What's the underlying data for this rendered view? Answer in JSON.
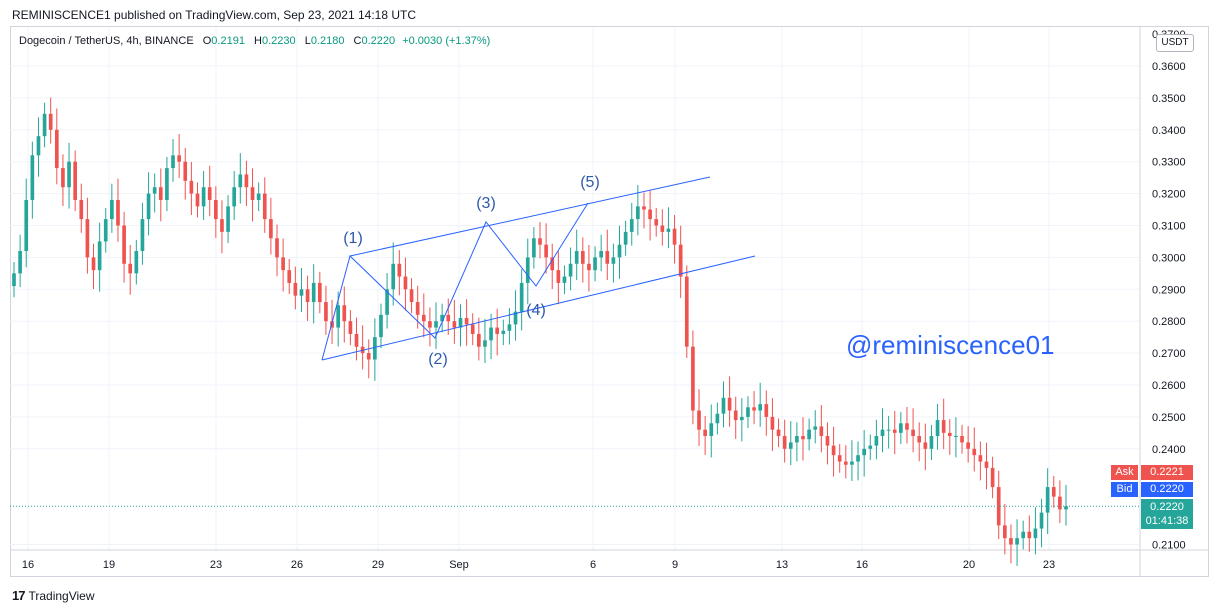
{
  "header": {
    "published": "REMINISCENCE1 published on TradingView.com, Sep 23, 2021 14:18 UTC"
  },
  "legend": {
    "symbol": "Dogecoin / TetherUS, 4h, BINANCE",
    "o_label": "O",
    "o_value": "0.2191",
    "h_label": "H",
    "h_value": "0.2230",
    "l_label": "L",
    "l_value": "0.2180",
    "c_label": "C",
    "c_value": "0.2220",
    "change": "+0.0030 (+1.37%)"
  },
  "price_axis": {
    "currency": "USDT",
    "ticks": [
      "0.3600",
      "0.3500",
      "0.3400",
      "0.3300",
      "0.3200",
      "0.3100",
      "0.3000",
      "0.2900",
      "0.2800",
      "0.2700",
      "0.2600",
      "0.2500",
      "0.2400",
      "0.2100"
    ],
    "top_partial": "0.3700"
  },
  "time_axis": {
    "ticks": [
      "16",
      "19",
      "23",
      "26",
      "29",
      "Sep",
      "6",
      "9",
      "13",
      "16",
      "20",
      "23"
    ]
  },
  "price_tags": {
    "ask_label": "Ask",
    "ask_value": "0.2221",
    "bid_label": "Bid",
    "bid_value": "0.2220",
    "last_value": "0.2220",
    "countdown": "01:41:38"
  },
  "annotations": {
    "wave_labels": [
      "(1)",
      "(2)",
      "(3)",
      "(4)",
      "(5)"
    ],
    "watermark": "@reminiscence01"
  },
  "colors": {
    "up": "#26a69a",
    "down": "#ef5350",
    "drawing": "#2962ff",
    "ask": "#ef5350",
    "bid": "#2962ff",
    "last": "#26a69a"
  },
  "footer": {
    "brand": "TradingView"
  },
  "chart_data": {
    "type": "candlestick",
    "title": "Dogecoin / TetherUS, 4h, BINANCE",
    "ylabel": "USDT",
    "ylim": [
      0.205,
      0.37
    ],
    "x_ticks": [
      "16",
      "19",
      "23",
      "26",
      "29",
      "Sep",
      "6",
      "9",
      "13",
      "16",
      "20",
      "23"
    ],
    "series": [
      {
        "close": [
          0.295,
          0.302,
          0.318,
          0.332,
          0.338,
          0.345,
          0.34,
          0.328,
          0.322,
          0.33,
          0.318,
          0.312,
          0.3,
          0.296,
          0.305,
          0.312,
          0.318,
          0.31,
          0.298,
          0.295,
          0.302,
          0.312,
          0.32,
          0.322,
          0.318,
          0.328,
          0.332,
          0.33,
          0.324,
          0.32,
          0.316,
          0.322,
          0.318,
          0.312,
          0.308,
          0.316,
          0.322,
          0.326,
          0.322,
          0.318,
          0.32,
          0.312,
          0.306,
          0.3,
          0.296,
          0.292,
          0.288,
          0.29,
          0.286,
          0.292,
          0.286,
          0.28,
          0.278,
          0.285,
          0.28,
          0.276,
          0.272,
          0.27,
          0.268,
          0.275,
          0.282,
          0.29,
          0.298,
          0.294,
          0.29,
          0.286,
          0.282,
          0.28,
          0.278,
          0.28,
          0.282,
          0.28,
          0.278,
          0.281,
          0.279,
          0.276,
          0.272,
          0.274,
          0.278,
          0.276,
          0.277,
          0.279,
          0.283,
          0.292,
          0.3,
          0.306,
          0.304,
          0.3,
          0.296,
          0.292,
          0.294,
          0.298,
          0.302,
          0.298,
          0.296,
          0.3,
          0.302,
          0.298,
          0.3,
          0.304,
          0.308,
          0.312,
          0.316,
          0.315,
          0.312,
          0.31,
          0.308,
          0.309,
          0.304,
          0.294,
          0.272,
          0.252,
          0.246,
          0.244,
          0.248,
          0.251,
          0.256,
          0.252,
          0.249,
          0.25,
          0.253,
          0.252,
          0.254,
          0.25,
          0.246,
          0.244,
          0.24,
          0.242,
          0.244,
          0.243,
          0.246,
          0.247,
          0.244,
          0.241,
          0.238,
          0.236,
          0.235,
          0.236,
          0.238,
          0.24,
          0.241,
          0.244,
          0.246,
          0.246,
          0.245,
          0.248,
          0.246,
          0.244,
          0.242,
          0.24,
          0.244,
          0.249,
          0.245,
          0.244,
          0.244,
          0.242,
          0.24,
          0.238,
          0.236,
          0.234,
          0.228,
          0.216,
          0.212,
          0.21,
          0.212,
          0.214,
          0.212,
          0.215,
          0.22,
          0.228,
          0.225,
          0.221,
          0.222
        ]
      }
    ]
  }
}
